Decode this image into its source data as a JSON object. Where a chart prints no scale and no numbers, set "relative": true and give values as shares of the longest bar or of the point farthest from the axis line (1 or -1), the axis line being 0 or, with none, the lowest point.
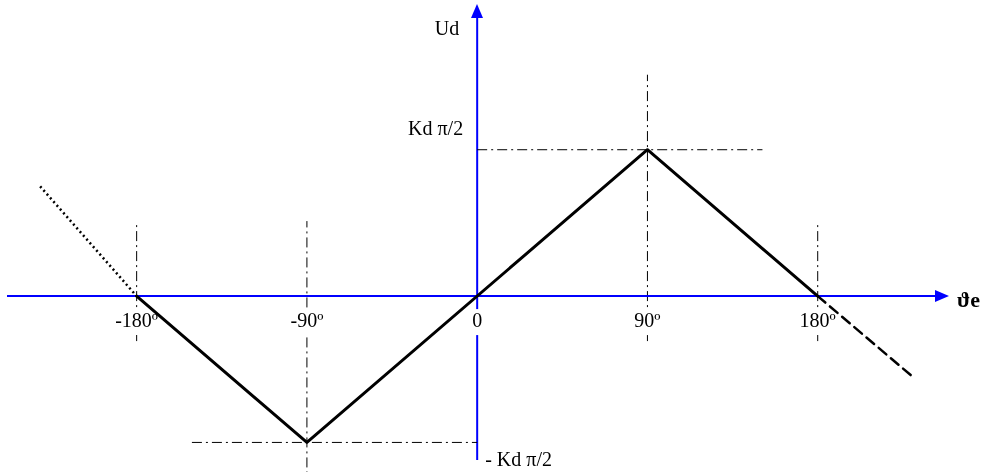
{
  "chart_data": {
    "type": "line",
    "xlabel": "ϑe",
    "relative": true,
    "xlim": [
      -248,
      242
    ],
    "xticks": [
      {
        "value": -180,
        "label": "-180º"
      },
      {
        "value": -90,
        "label": "-90º"
      },
      0,
      {
        "value": 90,
        "label": "90º"
      },
      {
        "value": 180,
        "label": "180º"
      }
    ],
    "annotations": [
      "Ud",
      {
        "text": "Kd π/2",
        "x": 0,
        "y": 1
      },
      {
        "text": "- Kd π/2",
        "x": 0,
        "y": -1
      }
    ],
    "grid": false,
    "legend": false,
    "marker": "none",
    "series": [
      {
        "color": "#000000",
        "x": [
          -180,
          -90,
          90,
          180
        ],
        "values": [
          0,
          -1,
          1,
          0
        ],
        "line_style": "solid"
      },
      {
        "color": "#000000",
        "x": [
          -231,
          -180
        ],
        "values": [
          0.75,
          0
        ],
        "line_style": "dotted"
      },
      {
        "color": "#000000",
        "x": [
          180,
          231
        ],
        "values": [
          0,
          -0.56
        ],
        "line_style": "dashed"
      }
    ],
    "ref_lines": [
      {
        "axis": "x",
        "value": 0,
        "color": "#0000ff",
        "line_style": "solid"
      },
      {
        "axis": "x",
        "value": -180,
        "color": "#000000",
        "line_style": "dashed"
      },
      {
        "axis": "x",
        "value": -90,
        "color": "#000000",
        "line_style": "dashed"
      },
      {
        "axis": "x",
        "value": 90,
        "color": "#000000",
        "line_style": "dashed"
      },
      {
        "axis": "x",
        "value": 180,
        "color": "#000000",
        "line_style": "dashed"
      },
      {
        "axis": "y",
        "value": 1,
        "color": "#000000",
        "line_style": "dashed"
      },
      {
        "axis": "y",
        "value": -1,
        "color": "#000000",
        "line_style": "dashed"
      }
    ]
  }
}
